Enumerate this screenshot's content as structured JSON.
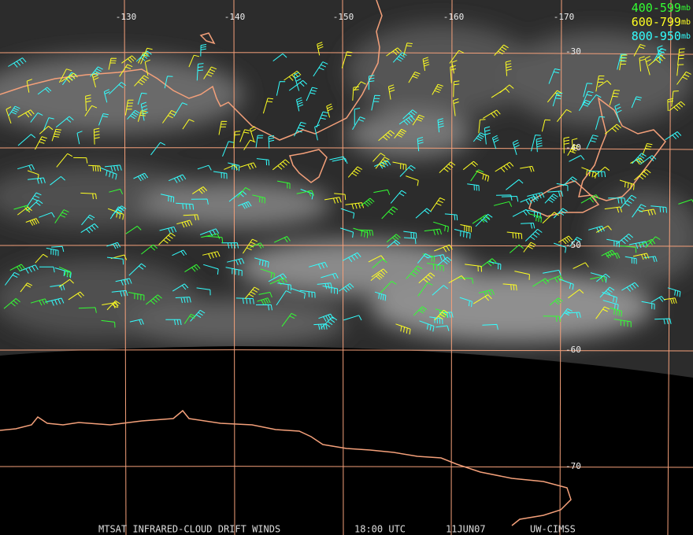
{
  "map": {
    "longitude_labels": [
      "-130",
      "-140",
      "-150",
      "-160",
      "-170"
    ],
    "latitude_labels": [
      "-30",
      "-40",
      "-50",
      "-60",
      "-70"
    ],
    "legend": [
      {
        "range": "400-599",
        "unit": "mb",
        "color": "#33ff33"
      },
      {
        "range": "600-799",
        "unit": "mb",
        "color": "#ffff22"
      },
      {
        "range": "800-950",
        "unit": "mb",
        "color": "#33ffff"
      }
    ],
    "footer": [
      "MTSAT INFRARED-CLOUD DRIFT WINDS",
      "18:00 UTC",
      "11JUN07",
      "UW-CIMSS"
    ]
  }
}
